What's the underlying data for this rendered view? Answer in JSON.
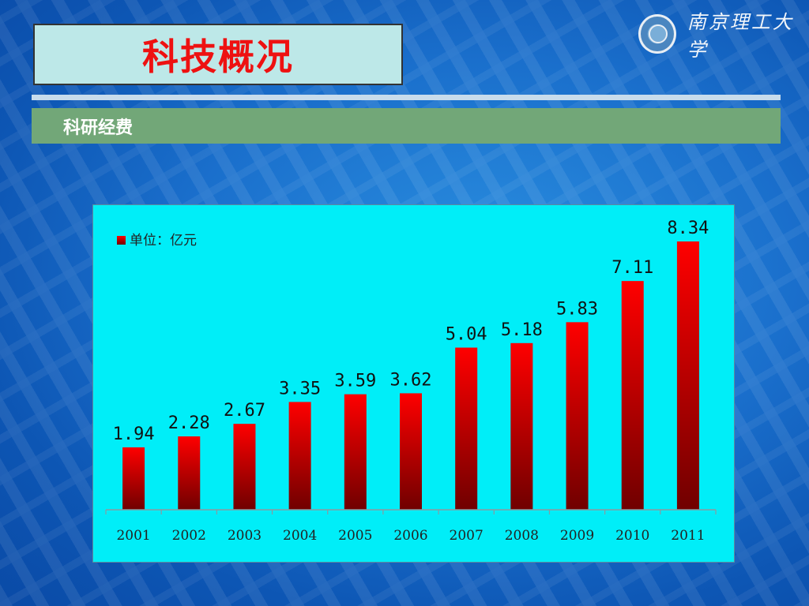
{
  "slide": {
    "title": "科技概况",
    "section": "科研经费",
    "logo_text": "南京理工大学"
  },
  "colors": {
    "title_red": "#ee1111",
    "section_green": "#72a778",
    "chart_bg": "#00eef8",
    "bar_top": "#ff0000",
    "bar_bottom": "#700000"
  },
  "chart_data": {
    "type": "bar",
    "categories": [
      "2001",
      "2002",
      "2003",
      "2004",
      "2005",
      "2006",
      "2007",
      "2008",
      "2009",
      "2010",
      "2011"
    ],
    "series": [
      {
        "name": "单位：亿元",
        "values": [
          1.94,
          2.28,
          2.67,
          3.35,
          3.59,
          3.62,
          5.04,
          5.18,
          5.83,
          7.11,
          8.34
        ]
      }
    ],
    "data_labels": [
      "1.94",
      "2.28",
      "2.67",
      "3.35",
      "3.59",
      "3.62",
      "5.04",
      "5.18",
      "5.83",
      "7.11",
      "8.34"
    ],
    "ylim": [
      0,
      8.34
    ],
    "grid": false,
    "legend_position": "top-left"
  }
}
